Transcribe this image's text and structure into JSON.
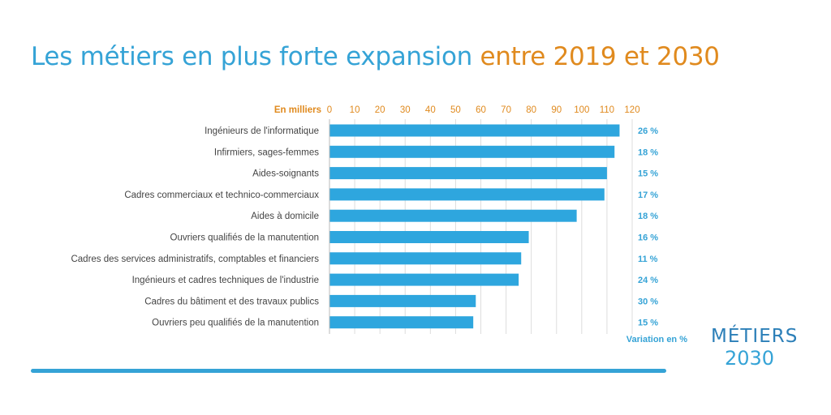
{
  "title": {
    "part1": "Les métiers en plus forte expansion",
    "part2": "entre 2019 et 2030"
  },
  "chart_data": {
    "type": "bar",
    "orientation": "horizontal",
    "axis_unit_label": "En milliers",
    "xlim": [
      0,
      120
    ],
    "xticks": [
      0,
      10,
      20,
      30,
      40,
      50,
      60,
      70,
      80,
      90,
      100,
      110,
      120
    ],
    "grid": true,
    "categories": [
      "Ingénieurs de l'informatique",
      "Infirmiers, sages-femmes",
      "Aides-soignants",
      "Cadres commerciaux et technico-commerciaux",
      "Aides à domicile",
      "Ouvriers qualifiés de la manutention",
      "Cadres des services administratifs, comptables et financiers",
      "Ingénieurs et cadres techniques de l'industrie",
      "Cadres du bâtiment et des travaux publics",
      "Ouvriers peu qualifiés de la manutention"
    ],
    "values": [
      115,
      113,
      110,
      109,
      98,
      79,
      76,
      75,
      58,
      57
    ],
    "variations": [
      "26 %",
      "18 %",
      "15 %",
      "17 %",
      "18 %",
      "16 %",
      "11 %",
      "24 %",
      "30 %",
      "15 %"
    ],
    "variation_label": "Variation en %",
    "colors": {
      "bar": "#2ea6de",
      "axis_label": "#e08a1e",
      "variation": "#35a3d6",
      "grid": "#dddddd"
    }
  },
  "logo": {
    "word": "MÉTIERS",
    "year": "2030"
  }
}
